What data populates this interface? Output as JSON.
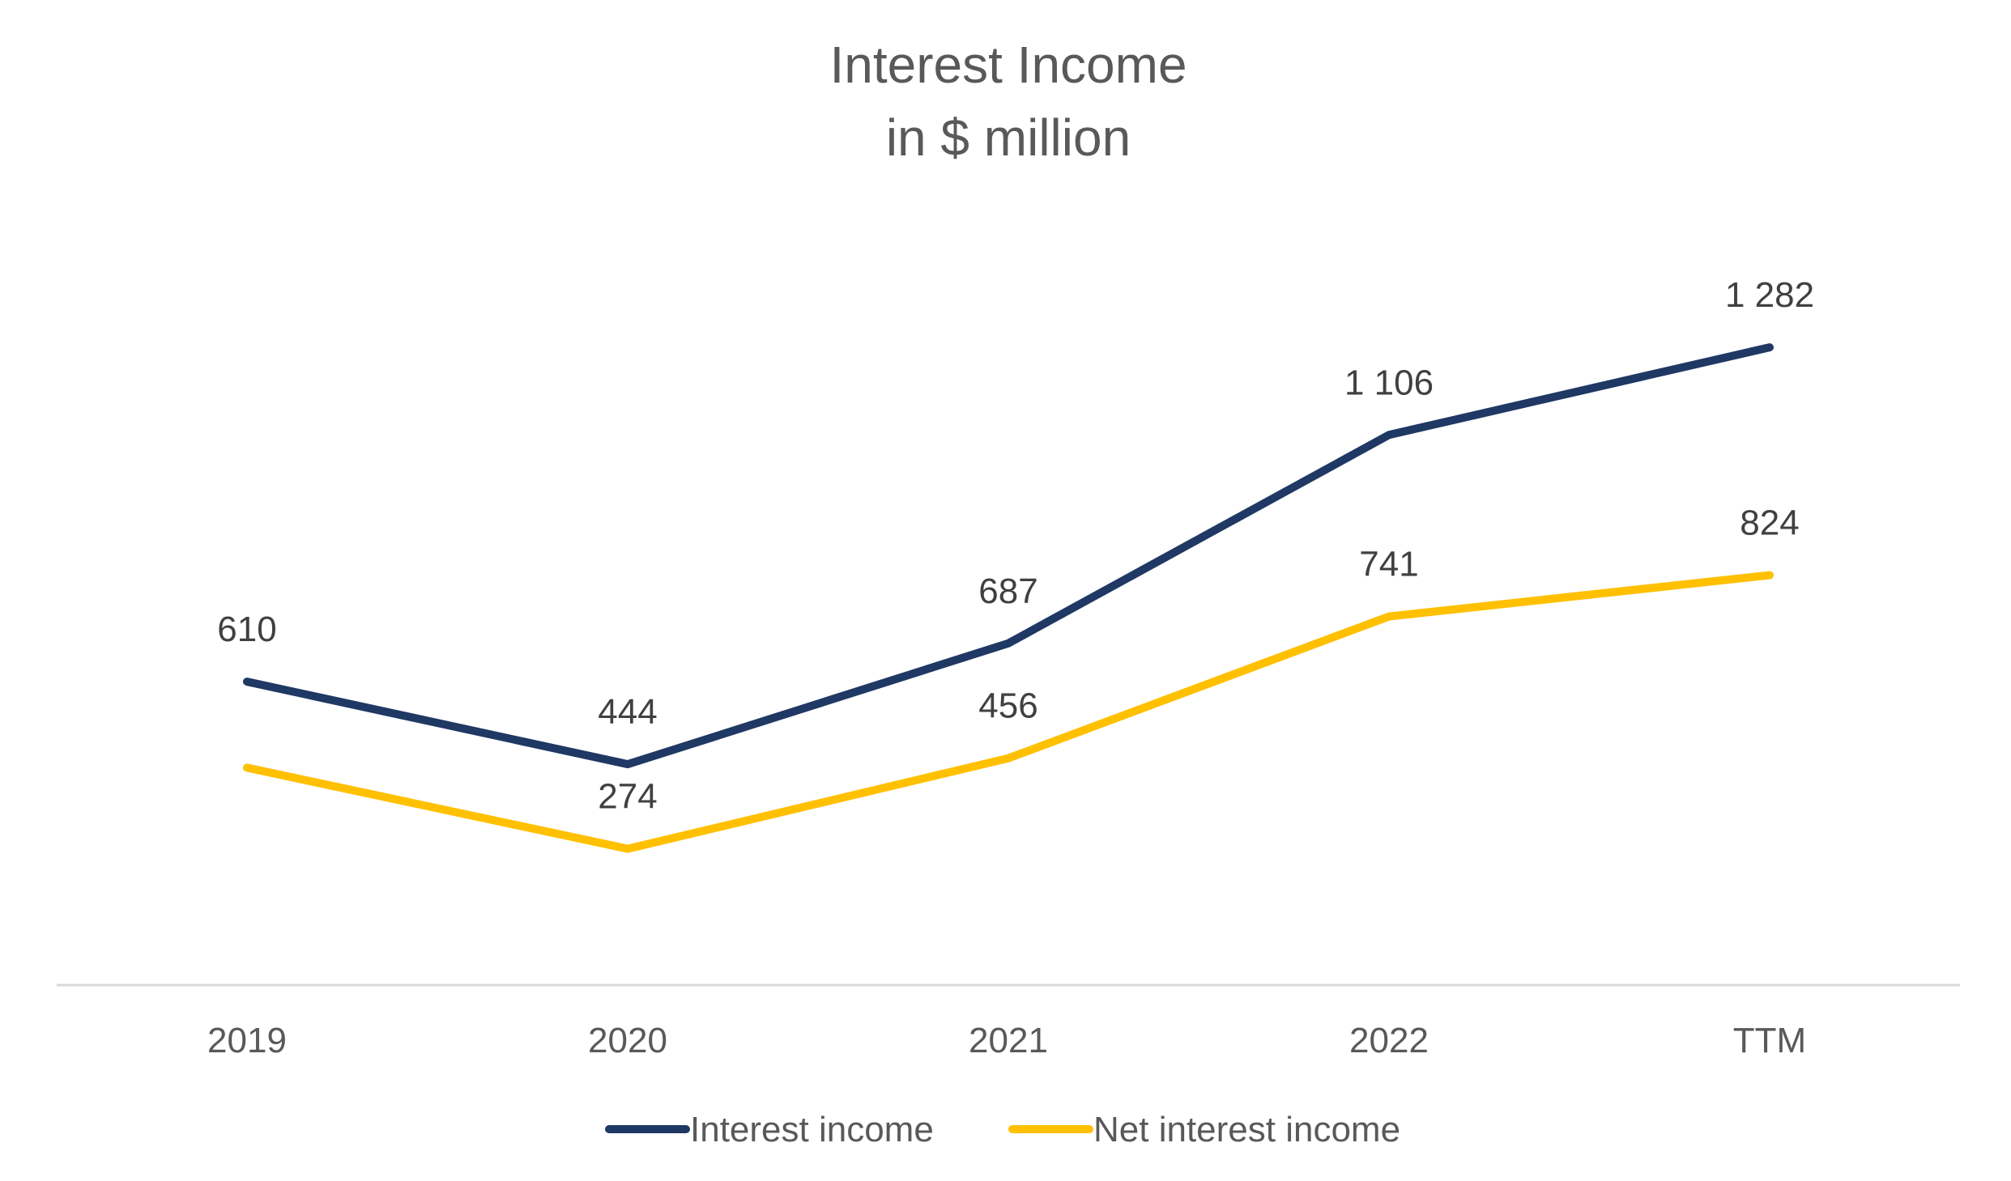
{
  "chart_data": {
    "type": "line",
    "title": "Interest Income",
    "subtitle": "in $ million",
    "categories": [
      "2019",
      "2020",
      "2021",
      "2022",
      "TTM"
    ],
    "series": [
      {
        "name": "Interest income",
        "color": "#1f3864",
        "values": [
          610,
          444,
          687,
          1106,
          1282
        ],
        "labels": [
          "610",
          "444",
          "687",
          "1 106",
          "1 282"
        ]
      },
      {
        "name": "Net interest income",
        "color": "#ffc000",
        "values": [
          437,
          274,
          456,
          741,
          824
        ],
        "labels": [
          "",
          "274",
          "456",
          "741",
          "824"
        ]
      }
    ],
    "ylim": [
      0,
      1500
    ],
    "grid": false,
    "legend_position": "bottom",
    "axis_color": "#d9d9d9"
  }
}
